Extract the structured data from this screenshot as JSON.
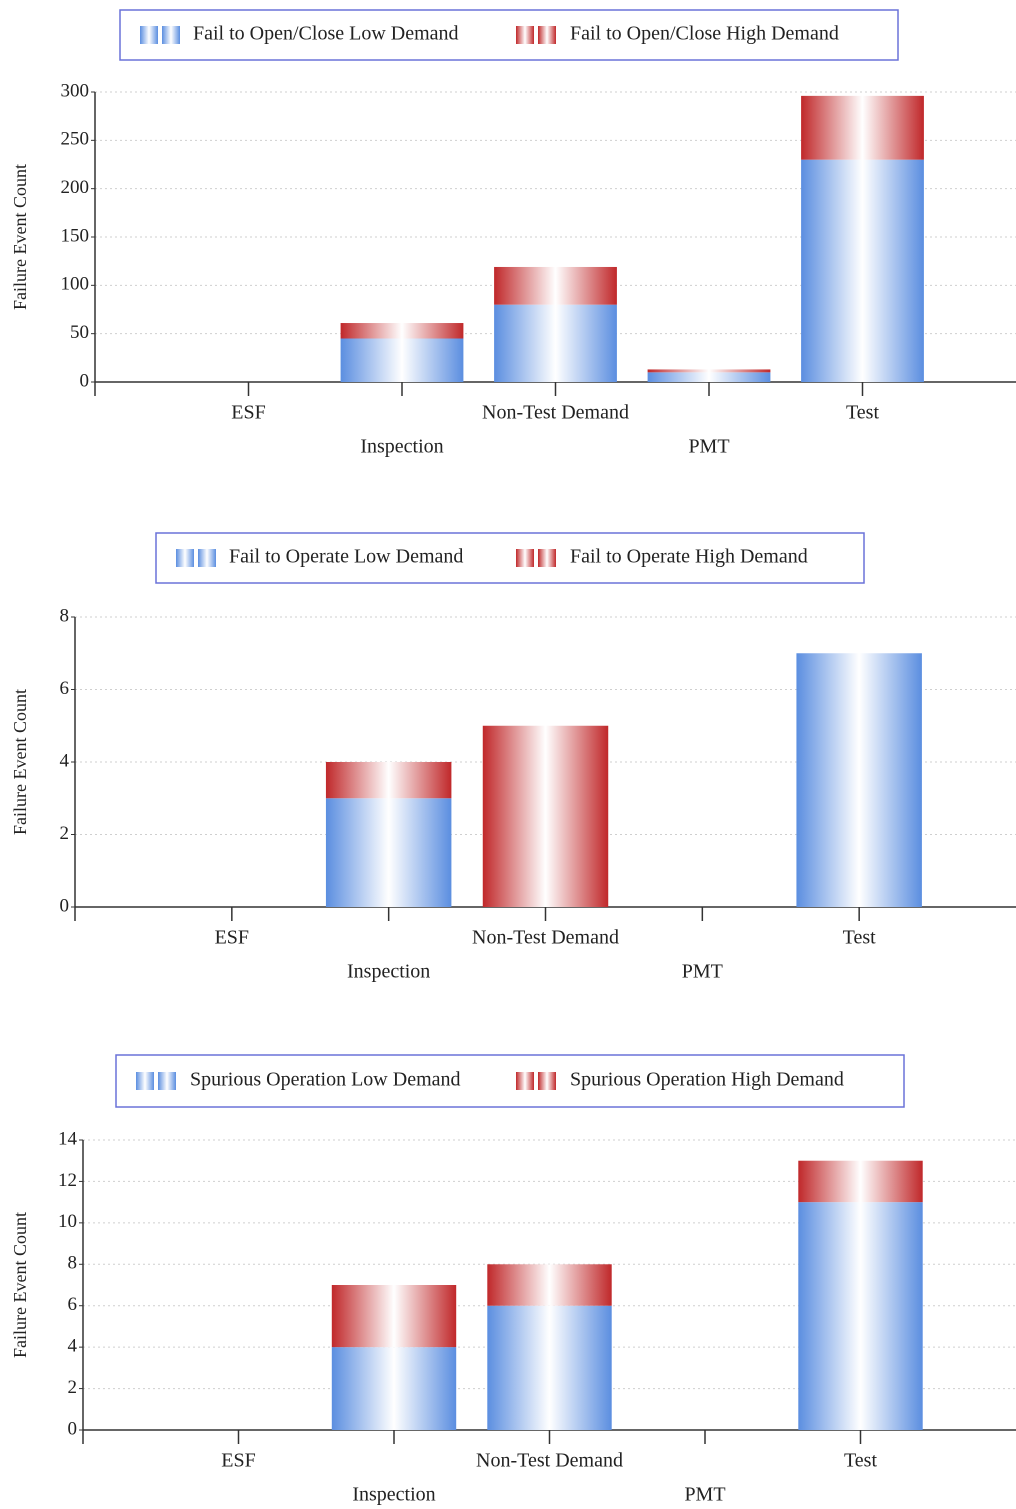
{
  "chart_data": [
    {
      "type": "bar",
      "stacked": true,
      "y_label": "Failure Event Count",
      "categories": [
        "ESF",
        "Inspection",
        "Non-Test Demand",
        "PMT",
        "Test"
      ],
      "series": [
        {
          "name": "Fail to Open/Close Low Demand",
          "color": "#5b8ee0",
          "values": [
            0,
            45,
            80,
            10,
            230
          ]
        },
        {
          "name": "Fail to Open/Close High Demand",
          "color": "#c0282a",
          "values": [
            0,
            16,
            39,
            3,
            66
          ]
        }
      ],
      "ylim": [
        0,
        300
      ],
      "yticks": [
        0,
        50,
        100,
        150,
        200,
        250,
        300
      ],
      "grid": true
    },
    {
      "type": "bar",
      "stacked": true,
      "y_label": "Failure Event Count",
      "categories": [
        "ESF",
        "Inspection",
        "Non-Test Demand",
        "PMT",
        "Test"
      ],
      "series": [
        {
          "name": "Fail to Operate Low Demand",
          "color": "#5b8ee0",
          "values": [
            0,
            3,
            0,
            0,
            7
          ]
        },
        {
          "name": "Fail to Operate High Demand",
          "color": "#c0282a",
          "values": [
            0,
            1,
            5,
            0,
            0
          ]
        }
      ],
      "ylim": [
        0,
        8
      ],
      "yticks": [
        0,
        2,
        4,
        6,
        8
      ],
      "grid": true
    },
    {
      "type": "bar",
      "stacked": true,
      "y_label": "Failure Event Count",
      "categories": [
        "ESF",
        "Inspection",
        "Non-Test Demand",
        "PMT",
        "Test"
      ],
      "series": [
        {
          "name": "Spurious Operation Low Demand",
          "color": "#5b8ee0",
          "values": [
            0,
            4,
            6,
            0,
            11
          ]
        },
        {
          "name": "Spurious Operation High Demand",
          "color": "#c0282a",
          "values": [
            0,
            3,
            2,
            0,
            2
          ]
        }
      ],
      "ylim": [
        0,
        14
      ],
      "yticks": [
        0,
        2,
        4,
        6,
        8,
        10,
        12,
        14
      ],
      "grid": true
    }
  ]
}
